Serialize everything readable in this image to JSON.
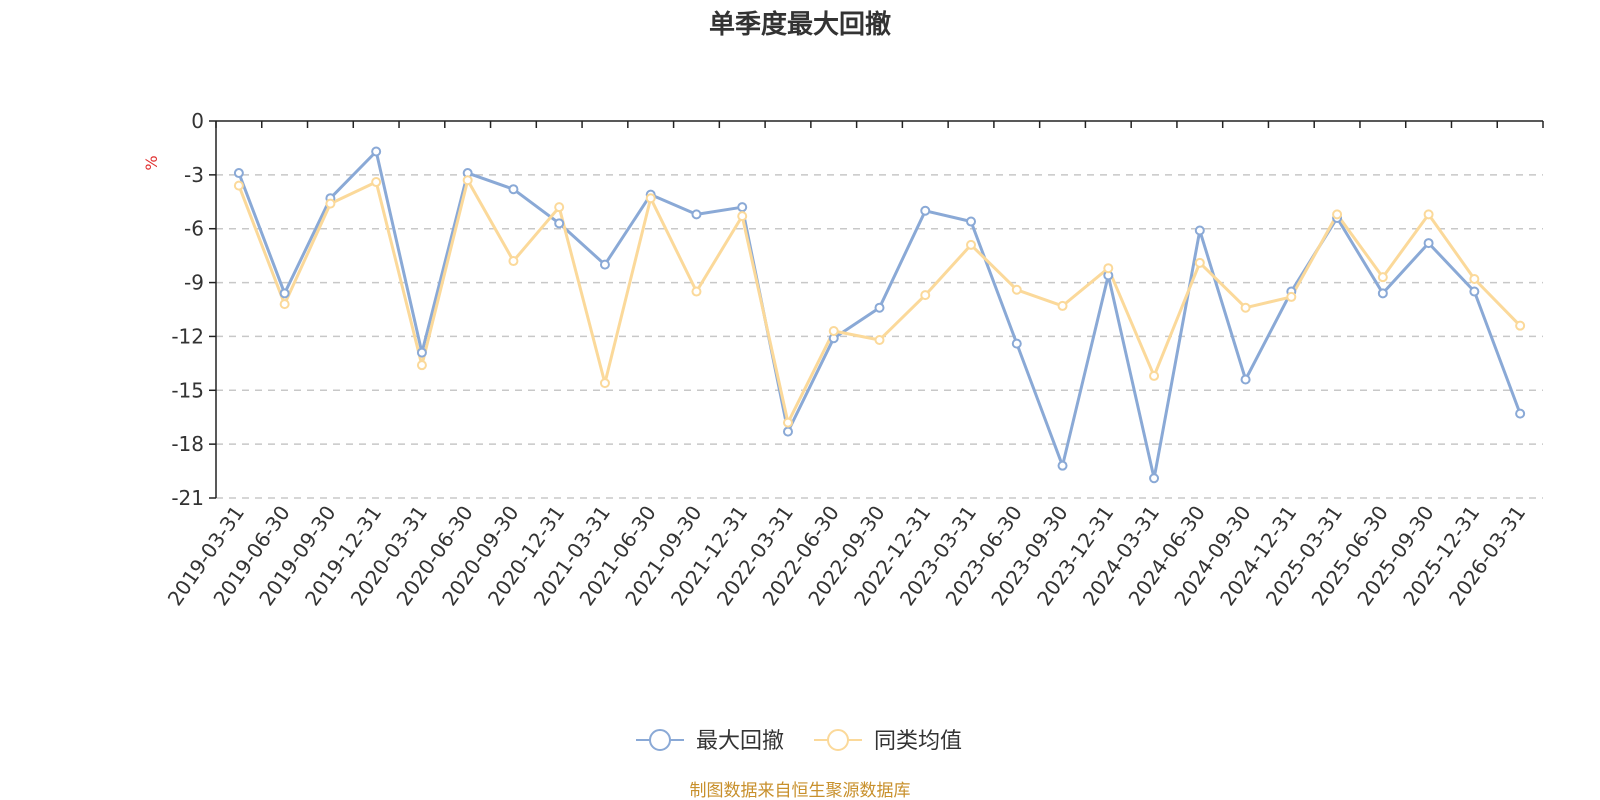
{
  "colors": {
    "series_primary": "#8aa9d6",
    "series_secondary": "#fbd99a",
    "axis": "#222222",
    "grid": "#c8c8c8",
    "unit": "#e03030",
    "source": "#c8902c"
  },
  "chart_data": {
    "type": "line",
    "title": "单季度最大回撤",
    "unit_label": "%",
    "xlabel": "",
    "ylabel": "",
    "ylim": [
      -21,
      0
    ],
    "yticks": [
      "0",
      "-3",
      "-6",
      "-9",
      "-12",
      "-15",
      "-18",
      "-21"
    ],
    "ytick_values": [
      0,
      -3,
      -6,
      -9,
      -12,
      -15,
      -18,
      -21
    ],
    "grid": "horizontal-dashed",
    "legend_position": "bottom-center",
    "categories": [
      "2019-03-31",
      "2019-06-30",
      "2019-09-30",
      "2019-12-31",
      "2020-03-31",
      "2020-06-30",
      "2020-09-30",
      "2020-12-31",
      "2021-03-31",
      "2021-06-30",
      "2021-09-30",
      "2021-12-31",
      "2022-03-31",
      "2022-06-30",
      "2022-09-30",
      "2022-12-31",
      "2023-03-31",
      "2023-06-30",
      "2023-09-30",
      "2023-12-31",
      "2024-03-31",
      "2024-06-30",
      "2024-09-30",
      "2024-12-31",
      "2025-03-31",
      "2025-06-30",
      "2025-09-30",
      "2025-12-31",
      "2026-03-31"
    ],
    "series": [
      {
        "name": "最大回撤",
        "values": [
          -2.9,
          -9.6,
          -4.3,
          -1.7,
          -12.9,
          -2.9,
          -3.8,
          -5.7,
          -8.0,
          -4.1,
          -5.2,
          -4.8,
          -17.3,
          -12.1,
          -10.4,
          -5.0,
          -5.6,
          -12.4,
          -19.2,
          -8.6,
          -19.9,
          -6.1,
          -14.4,
          -9.5,
          -5.4,
          -9.6,
          -6.8,
          -9.5,
          -16.3
        ]
      },
      {
        "name": "同类均值",
        "values": [
          -3.6,
          -10.2,
          -4.6,
          -3.4,
          -13.6,
          -3.3,
          -7.8,
          -4.8,
          -14.6,
          -4.3,
          -9.5,
          -5.3,
          -16.8,
          -11.7,
          -12.2,
          -9.7,
          -6.9,
          -9.4,
          -10.3,
          -8.2,
          -14.2,
          -7.9,
          -10.4,
          -9.8,
          -5.2,
          -8.7,
          -5.2,
          -8.8,
          -11.4
        ]
      }
    ]
  },
  "source_text": "制图数据来自恒生聚源数据库"
}
